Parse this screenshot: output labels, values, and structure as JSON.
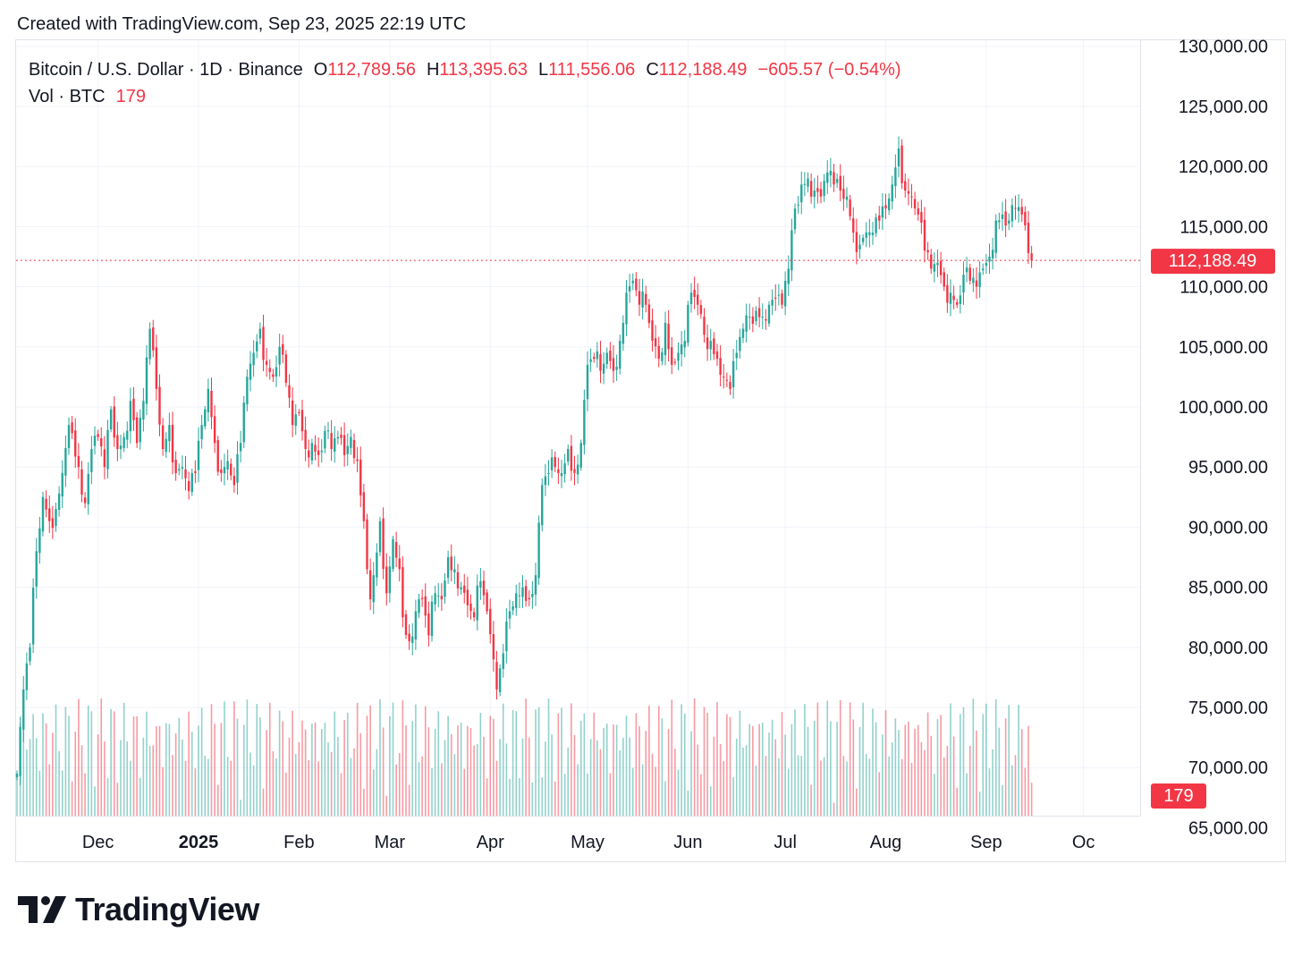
{
  "caption": "Created with TradingView.com, Sep 23, 2025 22:19 UTC",
  "legend": {
    "symbol": "Bitcoin / U.S. Dollar · 1D · Binance",
    "o_label": "O",
    "o_value": "112,789.56",
    "h_label": "H",
    "h_value": "113,395.63",
    "l_label": "L",
    "l_value": "111,556.06",
    "c_label": "C",
    "c_value": "112,188.49",
    "change": "−605.57 (−0.54%)",
    "vol_label": "Vol · BTC",
    "vol_value": "179"
  },
  "brand": "TradingView",
  "colors": {
    "up": "#26a69a",
    "down": "#f23645",
    "grid": "#f0f3fa",
    "text": "#131722"
  },
  "chart_data": {
    "type": "candlestick",
    "title": "Bitcoin / U.S. Dollar · 1D · Binance",
    "ylim": [
      66000,
      130500
    ],
    "y_ticks": [
      {
        "value": 130000,
        "label": "130,000.00"
      },
      {
        "value": 125000,
        "label": "125,000.00"
      },
      {
        "value": 120000,
        "label": "120,000.00"
      },
      {
        "value": 115000,
        "label": "115,000.00"
      },
      {
        "value": 110000,
        "label": "110,000.00"
      },
      {
        "value": 105000,
        "label": "105,000.00"
      },
      {
        "value": 100000,
        "label": "100,000.00"
      },
      {
        "value": 95000,
        "label": "95,000.00"
      },
      {
        "value": 90000,
        "label": "90,000.00"
      },
      {
        "value": 85000,
        "label": "85,000.00"
      },
      {
        "value": 80000,
        "label": "80,000.00"
      },
      {
        "value": 75000,
        "label": "75,000.00"
      },
      {
        "value": 70000,
        "label": "70,000.00"
      },
      {
        "value": 65000,
        "label": "65,000.00"
      }
    ],
    "x_ticks": [
      {
        "day": 25,
        "label": "Dec",
        "bold": false
      },
      {
        "day": 56,
        "label": "2025",
        "bold": true
      },
      {
        "day": 87,
        "label": "Feb",
        "bold": false
      },
      {
        "day": 115,
        "label": "Mar",
        "bold": false
      },
      {
        "day": 146,
        "label": "Apr",
        "bold": false
      },
      {
        "day": 176,
        "label": "May",
        "bold": false
      },
      {
        "day": 207,
        "label": "Jun",
        "bold": false
      },
      {
        "day": 237,
        "label": "Jul",
        "bold": false
      },
      {
        "day": 268,
        "label": "Aug",
        "bold": false
      },
      {
        "day": 299,
        "label": "Sep",
        "bold": false
      },
      {
        "day": 329,
        "label": "Oc",
        "bold": false
      }
    ],
    "last_price": 112188.49,
    "last_price_label": "112,188.49",
    "last_volume": 179,
    "last_volume_label": "179",
    "anchors": [
      [
        0,
        69500
      ],
      [
        2,
        76500
      ],
      [
        4,
        80000
      ],
      [
        6,
        88000
      ],
      [
        8,
        92500
      ],
      [
        10,
        90500
      ],
      [
        12,
        91500
      ],
      [
        14,
        94500
      ],
      [
        16,
        98500
      ],
      [
        19,
        95000
      ],
      [
        21,
        92000
      ],
      [
        23,
        96500
      ],
      [
        25,
        97500
      ],
      [
        27,
        95000
      ],
      [
        29,
        99800
      ],
      [
        31,
        96500
      ],
      [
        33,
        97500
      ],
      [
        35,
        100500
      ],
      [
        37,
        97000
      ],
      [
        39,
        100500
      ],
      [
        41,
        106500
      ],
      [
        43,
        101500
      ],
      [
        45,
        96500
      ],
      [
        47,
        98500
      ],
      [
        49,
        94500
      ],
      [
        51,
        95000
      ],
      [
        53,
        93000
      ],
      [
        55,
        94500
      ],
      [
        57,
        98500
      ],
      [
        59,
        101500
      ],
      [
        61,
        97000
      ],
      [
        63,
        94500
      ],
      [
        65,
        95500
      ],
      [
        67,
        93500
      ],
      [
        69,
        97000
      ],
      [
        71,
        102500
      ],
      [
        73,
        104500
      ],
      [
        75,
        106500
      ],
      [
        77,
        103500
      ],
      [
        79,
        102500
      ],
      [
        81,
        105000
      ],
      [
        83,
        102000
      ],
      [
        85,
        98500
      ],
      [
        87,
        99500
      ],
      [
        89,
        96500
      ],
      [
        91,
        97000
      ],
      [
        93,
        96000
      ],
      [
        95,
        98000
      ],
      [
        97,
        96500
      ],
      [
        99,
        97500
      ],
      [
        101,
        96000
      ],
      [
        103,
        97500
      ],
      [
        105,
        95500
      ],
      [
        107,
        90500
      ],
      [
        108,
        86500
      ],
      [
        109,
        84000
      ],
      [
        110,
        86000
      ],
      [
        112,
        90500
      ],
      [
        114,
        84500
      ],
      [
        116,
        89000
      ],
      [
        118,
        86500
      ],
      [
        119,
        82500
      ],
      [
        121,
        80500
      ],
      [
        123,
        83000
      ],
      [
        125,
        84000
      ],
      [
        127,
        81000
      ],
      [
        129,
        84500
      ],
      [
        131,
        84000
      ],
      [
        133,
        87500
      ],
      [
        135,
        86500
      ],
      [
        137,
        85000
      ],
      [
        139,
        83500
      ],
      [
        141,
        82500
      ],
      [
        143,
        85500
      ],
      [
        145,
        83000
      ],
      [
        147,
        79000
      ],
      [
        148,
        76500
      ],
      [
        150,
        79500
      ],
      [
        152,
        83000
      ],
      [
        154,
        84500
      ],
      [
        156,
        85000
      ],
      [
        158,
        84000
      ],
      [
        160,
        86000
      ],
      [
        162,
        93500
      ],
      [
        164,
        94500
      ],
      [
        166,
        95000
      ],
      [
        168,
        94500
      ],
      [
        170,
        96500
      ],
      [
        172,
        94500
      ],
      [
        174,
        97000
      ],
      [
        176,
        103500
      ],
      [
        178,
        104000
      ],
      [
        180,
        103000
      ],
      [
        182,
        104500
      ],
      [
        184,
        103000
      ],
      [
        186,
        105500
      ],
      [
        188,
        109500
      ],
      [
        190,
        110500
      ],
      [
        192,
        108500
      ],
      [
        194,
        108500
      ],
      [
        196,
        105500
      ],
      [
        198,
        104000
      ],
      [
        200,
        107000
      ],
      [
        202,
        103500
      ],
      [
        204,
        104500
      ],
      [
        206,
        105500
      ],
      [
        208,
        109500
      ],
      [
        210,
        108500
      ],
      [
        212,
        106000
      ],
      [
        214,
        105500
      ],
      [
        216,
        104000
      ],
      [
        218,
        102500
      ],
      [
        220,
        101500
      ],
      [
        222,
        104500
      ],
      [
        224,
        106500
      ],
      [
        226,
        107500
      ],
      [
        228,
        108000
      ],
      [
        230,
        107500
      ],
      [
        232,
        108500
      ],
      [
        234,
        109000
      ],
      [
        236,
        108500
      ],
      [
        238,
        111500
      ],
      [
        240,
        116500
      ],
      [
        242,
        118500
      ],
      [
        244,
        119000
      ],
      [
        246,
        118000
      ],
      [
        248,
        117500
      ],
      [
        250,
        119500
      ],
      [
        252,
        118500
      ],
      [
        254,
        118000
      ],
      [
        256,
        117500
      ],
      [
        258,
        114500
      ],
      [
        260,
        113500
      ],
      [
        262,
        114500
      ],
      [
        264,
        114500
      ],
      [
        266,
        115500
      ],
      [
        268,
        116500
      ],
      [
        270,
        118500
      ],
      [
        272,
        121500
      ],
      [
        274,
        118000
      ],
      [
        276,
        117500
      ],
      [
        278,
        116000
      ],
      [
        280,
        113000
      ],
      [
        282,
        111500
      ],
      [
        284,
        112000
      ],
      [
        286,
        110000
      ],
      [
        288,
        109500
      ],
      [
        290,
        108500
      ],
      [
        292,
        111000
      ],
      [
        294,
        110500
      ],
      [
        296,
        110000
      ],
      [
        298,
        111500
      ],
      [
        300,
        112500
      ],
      [
        302,
        115500
      ],
      [
        304,
        116000
      ],
      [
        306,
        115500
      ],
      [
        308,
        116500
      ],
      [
        310,
        116000
      ],
      [
        312,
        112800
      ],
      [
        313,
        112188.49
      ]
    ]
  }
}
